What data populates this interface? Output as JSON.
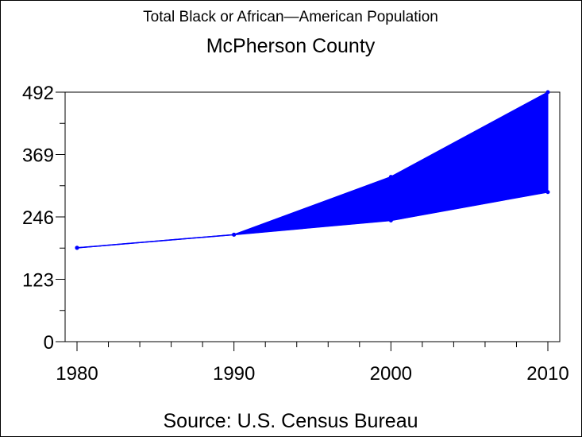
{
  "chart_data": {
    "type": "area",
    "title": "Total Black or African—American Population",
    "subtitle": "McPherson County",
    "source": "Source: U.S. Census Bureau",
    "xlabel": "",
    "ylabel": "",
    "x_ticks": [
      "1980",
      "1990",
      "2000",
      "2010"
    ],
    "y_ticks": [
      "0",
      "123",
      "246",
      "369",
      "492"
    ],
    "xlim": [
      1980,
      2010
    ],
    "ylim": [
      0,
      492
    ],
    "grid": false,
    "legend": "none",
    "fill_color": "#0000ff",
    "line_color": "#0000ff",
    "series": [
      {
        "x": [
          1980,
          1990,
          2000,
          2010
        ],
        "values": [
          185,
          211,
          325,
          492
        ]
      },
      {
        "x": [
          1980,
          1990,
          2000,
          2010
        ],
        "values": [
          185,
          211,
          239,
          295
        ]
      }
    ]
  }
}
